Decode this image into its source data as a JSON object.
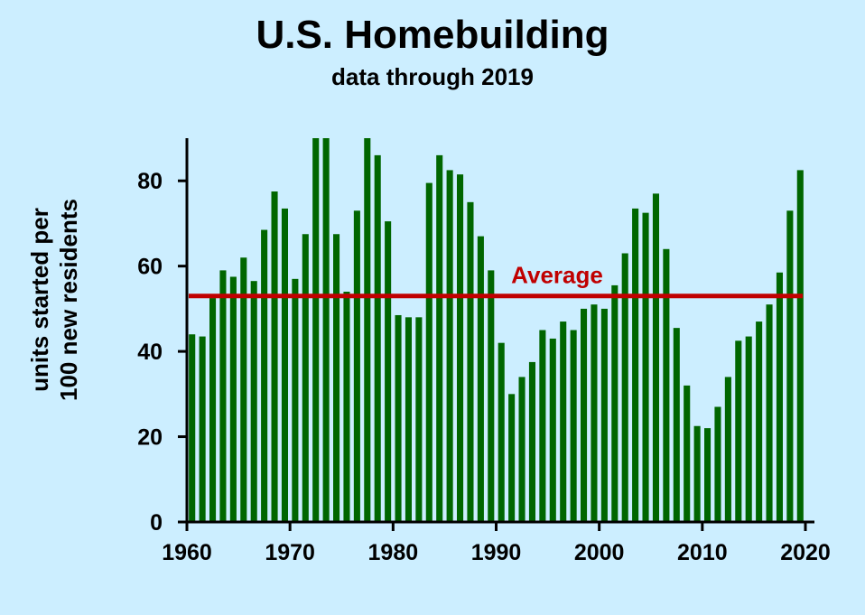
{
  "chart_data": {
    "type": "bar",
    "title": "U.S. Homebuilding",
    "subtitle": "data through 2019",
    "ylabel_line1": "units started per",
    "ylabel_line2": "100 new residents",
    "xlabel": "",
    "xlim": [
      1960,
      2020
    ],
    "ylim": [
      0,
      90
    ],
    "x_ticks": [
      1960,
      1970,
      1980,
      1990,
      2000,
      2010,
      2020
    ],
    "y_ticks": [
      0,
      20,
      40,
      60,
      80
    ],
    "bar_color": "#006600",
    "average": {
      "label": "Average",
      "value": 53,
      "color": "#c00000"
    },
    "years": [
      1960,
      1961,
      1962,
      1963,
      1964,
      1965,
      1966,
      1967,
      1968,
      1969,
      1970,
      1971,
      1972,
      1973,
      1974,
      1975,
      1976,
      1977,
      1978,
      1979,
      1980,
      1981,
      1982,
      1983,
      1984,
      1985,
      1986,
      1987,
      1988,
      1989,
      1990,
      1991,
      1992,
      1993,
      1994,
      1995,
      1996,
      1997,
      1998,
      1999,
      2000,
      2001,
      2002,
      2003,
      2004,
      2005,
      2006,
      2007,
      2008,
      2009,
      2010,
      2011,
      2012,
      2013,
      2014,
      2015,
      2016,
      2017,
      2018,
      2019
    ],
    "values": [
      44,
      43.5,
      52.5,
      59,
      57.5,
      62,
      56.5,
      68.5,
      77.5,
      73.5,
      57,
      67.5,
      90,
      90,
      67.5,
      54,
      73,
      90,
      86,
      70.5,
      48.5,
      48,
      48,
      79.5,
      86,
      82.5,
      81.5,
      75,
      67,
      59,
      42,
      30,
      34,
      37.5,
      45,
      43,
      47,
      45,
      50,
      51,
      50,
      55.5,
      63,
      73.5,
      72.5,
      77,
      64,
      45.5,
      32,
      22.5,
      22,
      27,
      34,
      42.5,
      43.5,
      47,
      51,
      58.5,
      73,
      82.5
    ]
  }
}
